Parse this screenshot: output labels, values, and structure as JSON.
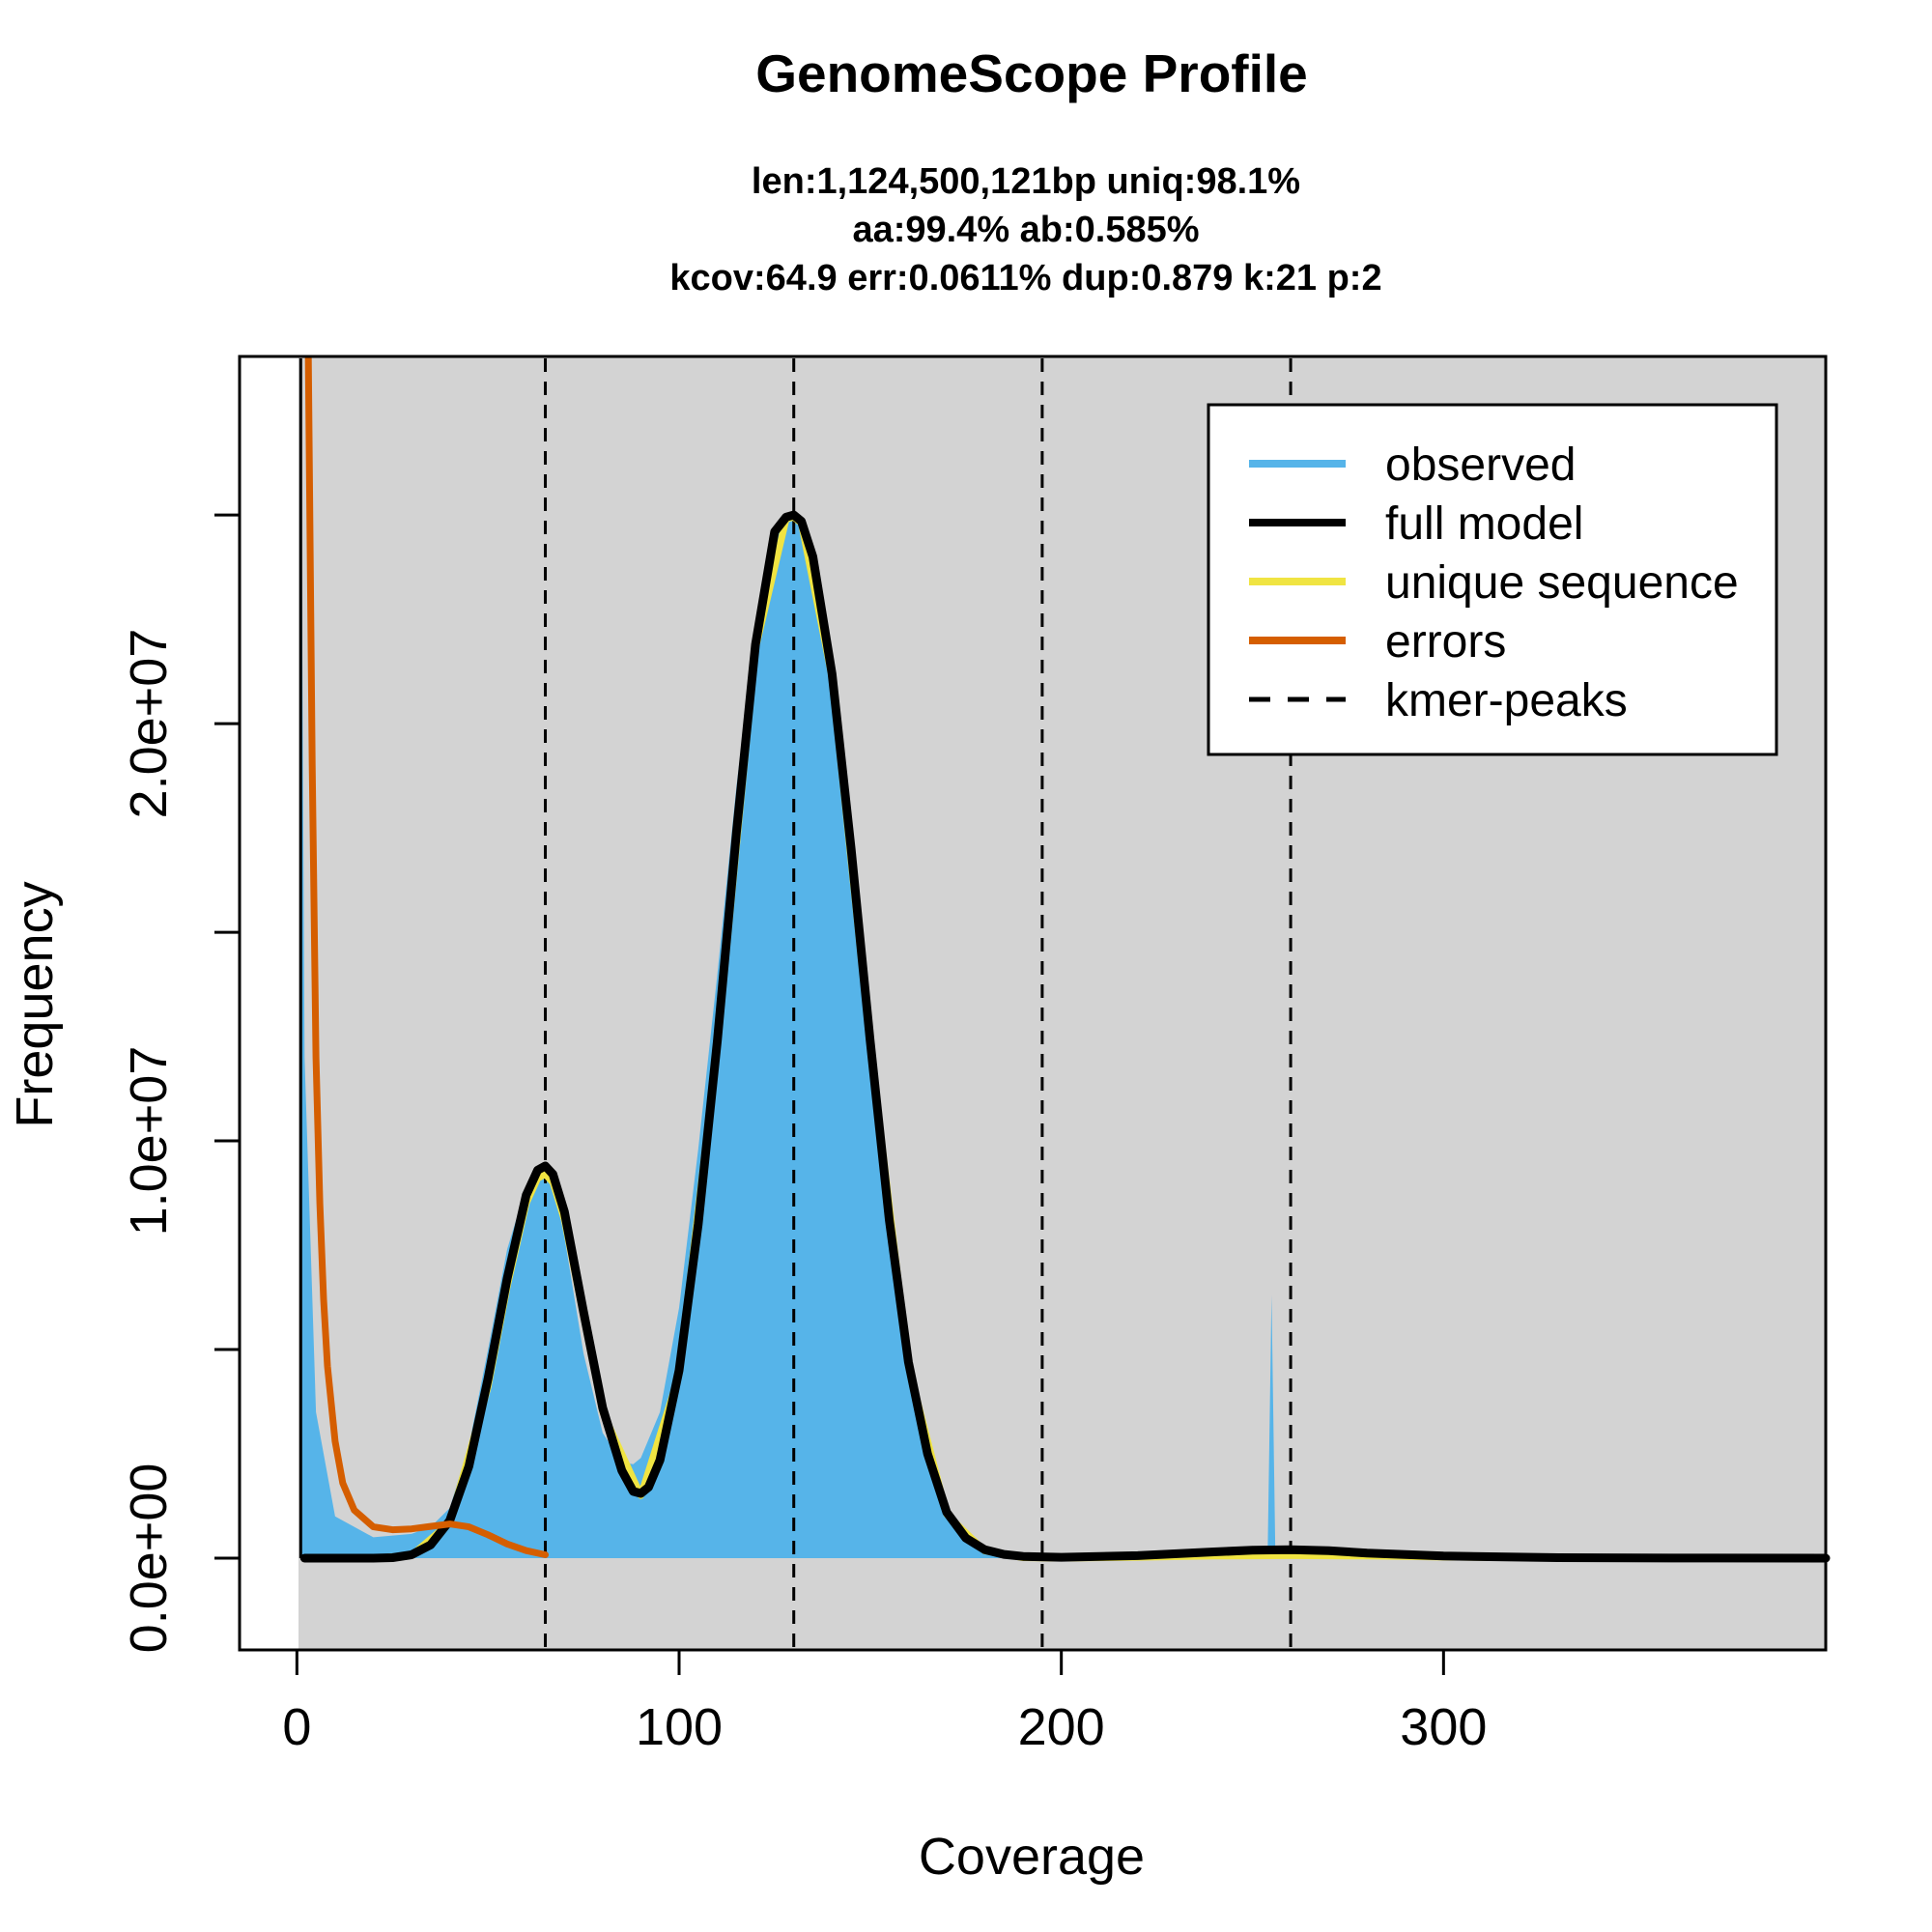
{
  "chart_data": {
    "type": "area",
    "title": "GenomeScope Profile",
    "subtitle_lines": [
      "len:1,124,500,121bp uniq:98.1%",
      "aa:99.4% ab:0.585%",
      "kcov:64.9 err:0.0611%  dup:0.879  k:21 p:2"
    ],
    "xlabel": "Coverage",
    "ylabel": "Frequency",
    "xlim": [
      -15,
      400
    ],
    "ylim": [
      -2200000,
      28800000
    ],
    "x_ticks": [
      0,
      100,
      200,
      300
    ],
    "x_tick_labels": [
      "0",
      "100",
      "200",
      "300"
    ],
    "y_ticks": [
      0,
      5000000,
      10000000,
      15000000,
      20000000,
      25000000
    ],
    "y_tick_labels": [
      "0.0e+00",
      "",
      "1.0e+07",
      "",
      "2.0e+07",
      ""
    ],
    "kmer_peaks": [
      65,
      130,
      195,
      260
    ],
    "legend": {
      "position": "top-right",
      "entries": [
        {
          "label": "observed",
          "color": "#56B4E9",
          "style": "solid"
        },
        {
          "label": "full model",
          "color": "#000000",
          "style": "solid"
        },
        {
          "label": "unique sequence",
          "color": "#F0E442",
          "style": "solid"
        },
        {
          "label": "errors",
          "color": "#D55E00",
          "style": "solid"
        },
        {
          "label": "kmer-peaks",
          "color": "#000000",
          "style": "dashed"
        }
      ]
    },
    "colors": {
      "background": "#D3D3D3",
      "observed": "#56B4E9",
      "full_model": "#000000",
      "unique": "#F0E442",
      "errors": "#D55E00"
    },
    "series": [
      {
        "name": "observed",
        "x": [
          1,
          2,
          5,
          10,
          20,
          30,
          35,
          40,
          45,
          50,
          55,
          60,
          63,
          65,
          67,
          70,
          75,
          80,
          85,
          88,
          90,
          95,
          100,
          105,
          110,
          115,
          120,
          125,
          128,
          130,
          132,
          135,
          140,
          145,
          150,
          155,
          160,
          165,
          170,
          175,
          180,
          185,
          190,
          200,
          220,
          250,
          254,
          255,
          256,
          258,
          270,
          300,
          400
        ],
        "y": [
          28800000,
          12000000,
          3500000,
          1000000,
          500000,
          580000,
          750000,
          1200000,
          2700000,
          5000000,
          7400000,
          8900000,
          9400000,
          9400000,
          9000000,
          7700000,
          4900000,
          3000000,
          2300000,
          2250000,
          2400000,
          3500000,
          6000000,
          9800000,
          14000000,
          18500000,
          22300000,
          24600000,
          25000000,
          25000000,
          24800000,
          23900000,
          21000000,
          16800000,
          12100000,
          7900000,
          4600000,
          2400000,
          1100000,
          480000,
          200000,
          90000,
          40000,
          15000,
          60000,
          150000,
          150000,
          6300000,
          150000,
          150000,
          100000,
          20000,
          0
        ]
      },
      {
        "name": "full model",
        "x": [
          2,
          10,
          20,
          25,
          30,
          35,
          40,
          45,
          50,
          55,
          60,
          63,
          65,
          67,
          70,
          75,
          80,
          85,
          88,
          90,
          92,
          95,
          100,
          105,
          110,
          115,
          120,
          125,
          128,
          130,
          132,
          135,
          140,
          145,
          150,
          155,
          160,
          165,
          170,
          175,
          180,
          185,
          190,
          200,
          220,
          240,
          250,
          260,
          270,
          280,
          300,
          330,
          360,
          400
        ],
        "y": [
          0,
          0,
          0,
          10000,
          80000,
          320000,
          900000,
          2200000,
          4300000,
          6700000,
          8700000,
          9300000,
          9400000,
          9200000,
          8300000,
          5900000,
          3600000,
          2100000,
          1600000,
          1550000,
          1700000,
          2350000,
          4500000,
          8000000,
          12400000,
          17400000,
          21900000,
          24600000,
          24950000,
          25000000,
          24850000,
          24000000,
          21200000,
          17000000,
          12400000,
          8100000,
          4700000,
          2500000,
          1100000,
          480000,
          200000,
          90000,
          40000,
          20000,
          60000,
          150000,
          190000,
          200000,
          180000,
          120000,
          50000,
          10000,
          2000,
          0
        ]
      },
      {
        "name": "unique sequence",
        "x": [
          2,
          20,
          30,
          40,
          50,
          55,
          60,
          63,
          65,
          67,
          70,
          75,
          80,
          90,
          100,
          110,
          120,
          128,
          130,
          132,
          140,
          150,
          160,
          170,
          180,
          190,
          200,
          220,
          240,
          260,
          280,
          300,
          330,
          400
        ],
        "y": [
          0,
          0,
          70000,
          850000,
          4100000,
          6500000,
          8500000,
          9100000,
          9200000,
          9000000,
          8100000,
          5800000,
          3500000,
          1500000,
          4400000,
          12300000,
          21800000,
          24900000,
          24950000,
          24800000,
          21100000,
          12300000,
          4600000,
          1050000,
          170000,
          10000,
          0,
          20000,
          50000,
          60000,
          50000,
          25000,
          5000,
          0
        ]
      },
      {
        "name": "errors",
        "x": [
          3,
          4,
          5,
          6,
          7,
          8,
          10,
          12,
          15,
          20,
          25,
          30,
          35,
          40,
          45,
          50,
          55,
          60,
          65
        ],
        "y": [
          28800000,
          19000000,
          12000000,
          8500000,
          6200000,
          4600000,
          2800000,
          1800000,
          1150000,
          750000,
          680000,
          700000,
          760000,
          820000,
          750000,
          560000,
          340000,
          180000,
          80000
        ]
      }
    ]
  }
}
